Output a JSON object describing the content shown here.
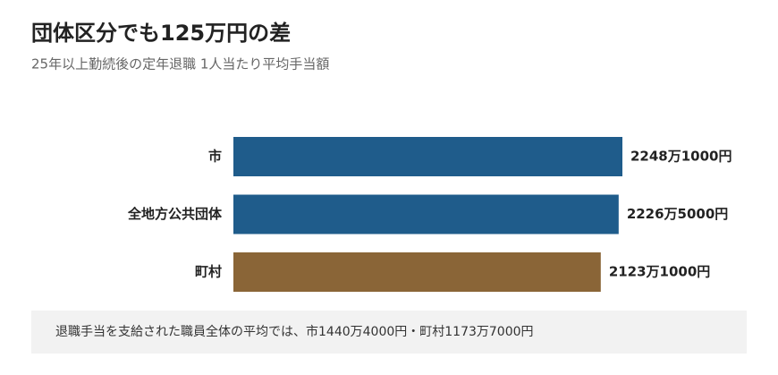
{
  "chart_data": {
    "type": "bar",
    "orientation": "horizontal",
    "title": "団体区分でも125万円の差",
    "subtitle": "25年以上勤続後の定年退職 1人当たり平均手当額",
    "categories": [
      "市",
      "全地方公共団体",
      "町村"
    ],
    "values": [
      22481000,
      22265000,
      21231000
    ],
    "value_labels": [
      "2248万1000円",
      "2226万5000円",
      "2123万1000円"
    ],
    "colors": [
      "#1f5c8b",
      "#1f5c8b",
      "#8a6537"
    ],
    "note": "退職手当を支給された職員全体の平均では、市1440万4000円・町村1173万7000円"
  }
}
